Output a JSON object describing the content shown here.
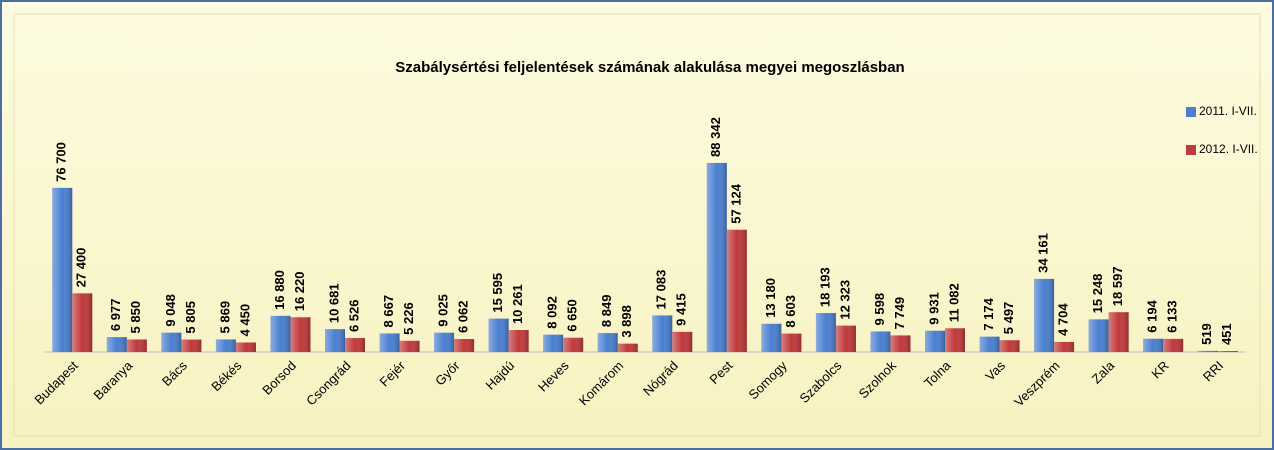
{
  "chart_data": {
    "type": "bar",
    "title": "Szabálysértési feljelentések számának alakulása megyei megoszlásban",
    "categories": [
      "Budapest",
      "Baranya",
      "Bács",
      "Békés",
      "Borsod",
      "Csongrád",
      "Fejér",
      "Győr",
      "Hajdú",
      "Heves",
      "Komárom",
      "Nógrád",
      "Pest",
      "Somogy",
      "Szabolcs",
      "Szolnok",
      "Tolna",
      "Vas",
      "Veszprém",
      "Zala",
      "KR",
      "RRI"
    ],
    "series": [
      {
        "name": "2011. I-VII.",
        "color": "#4a7fd0",
        "values": [
          76700,
          6977,
          9048,
          5869,
          16880,
          10681,
          8667,
          9025,
          15595,
          8092,
          8849,
          17083,
          88342,
          13180,
          18193,
          9598,
          9931,
          7174,
          34161,
          15248,
          6194,
          519
        ],
        "value_labels": [
          "76 700",
          "6 977",
          "9 048",
          "5 869",
          "16 880",
          "10 681",
          "8 667",
          "9 025",
          "15 595",
          "8 092",
          "8 849",
          "17 083",
          "88 342",
          "13 180",
          "18 193",
          "9 598",
          "9 931",
          "7 174",
          "34 161",
          "15 248",
          "6 194",
          "519"
        ]
      },
      {
        "name": "2012. I-VII.",
        "color": "#c0393b",
        "values": [
          27400,
          5850,
          5805,
          4450,
          16220,
          6526,
          5226,
          6062,
          10261,
          6650,
          3898,
          9415,
          57124,
          8603,
          12323,
          7749,
          11082,
          5497,
          4704,
          18597,
          6133,
          451
        ],
        "value_labels": [
          "27 400",
          "5 850",
          "5 805",
          "4 450",
          "16 220",
          "6 526",
          "5 226",
          "6 062",
          "10 261",
          "6 650",
          "3 898",
          "9 415",
          "57 124",
          "8 603",
          "12 323",
          "7 749",
          "11 082",
          "5 497",
          "4 704",
          "18 597",
          "6 133",
          "451"
        ]
      }
    ],
    "ylim": [
      0,
      100000
    ],
    "legend": "right"
  }
}
